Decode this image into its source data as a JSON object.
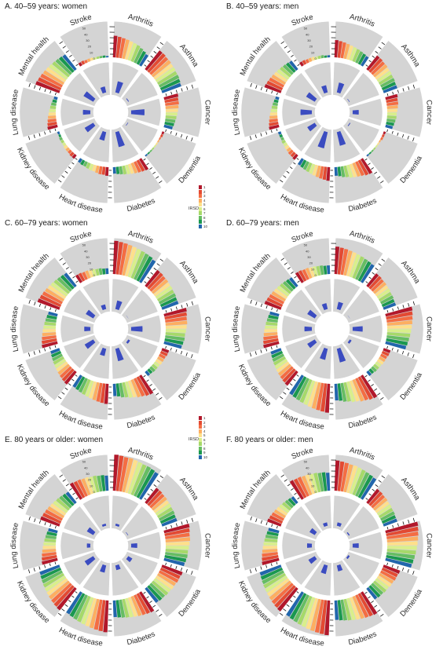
{
  "colors": {
    "panel_fill": "#d4d4d4",
    "bar_blue": "#3b4cc0",
    "irsd_scale": [
      "#b2182b",
      "#e34a33",
      "#f46d43",
      "#fdae61",
      "#fee08b",
      "#d9ef8b",
      "#a6d96a",
      "#66bd63",
      "#1a9850",
      "#2166ac"
    ]
  },
  "legend": {
    "title": "IRSD",
    "labels": [
      "1",
      "2",
      "3",
      "4",
      "5",
      "6",
      "7",
      "8",
      "9",
      "10"
    ]
  },
  "chart_data": [
    {
      "type": "radial-bar",
      "title": "A. 40–59 years: women",
      "categories": [
        "Arthritis",
        "Asthma",
        "Cancer",
        "Dementia",
        "Diabetes",
        "Heart disease",
        "Kidney disease",
        "Lung disease",
        "Mental health",
        "Stroke"
      ],
      "series": [
        {
          "name": "IRSD",
          "values": [
            [
              30,
              29,
              28,
              27,
              26,
              25,
              24,
              22,
              20,
              18
            ],
            [
              33,
              33,
              32,
              32,
              31,
              31,
              30,
              30,
              29,
              28
            ],
            [
              20,
              19,
              19,
              18,
              17,
              16,
              15,
              14,
              13,
              12
            ],
            [
              3,
              3,
              2,
              2,
              2,
              2,
              2,
              2,
              2,
              2
            ],
            [
              18,
              17,
              16,
              15,
              14,
              13,
              12,
              11,
              10,
              9
            ],
            [
              12,
              11,
              11,
              10,
              9,
              9,
              8,
              7,
              7,
              6
            ],
            [
              6,
              6,
              5,
              5,
              5,
              4,
              4,
              4,
              3,
              3
            ],
            [
              14,
              13,
              12,
              11,
              10,
              9,
              8,
              7,
              6,
              5
            ],
            [
              35,
              34,
              33,
              32,
              31,
              30,
              29,
              28,
              27,
              26
            ],
            [
              5,
              5,
              4,
              4,
              4,
              3,
              3,
              3,
              3,
              2
            ]
          ]
        },
        {
          "name": "inner",
          "values": [
            22,
            6,
            25,
            4,
            28,
            18,
            20,
            16,
            22,
            14
          ]
        }
      ],
      "scale_labels": [
        "50",
        "40",
        "30",
        "20",
        "10",
        "0"
      ]
    },
    {
      "type": "radial-bar",
      "title": "B. 40–59 years: men",
      "categories": [
        "Arthritis",
        "Asthma",
        "Cancer",
        "Dementia",
        "Diabetes",
        "Heart disease",
        "Kidney disease",
        "Lung disease",
        "Mental health",
        "Stroke"
      ],
      "series": [
        {
          "name": "IRSD",
          "values": [
            [
              24,
              23,
              22,
              21,
              20,
              19,
              18,
              17,
              16,
              15
            ],
            [
              24,
              24,
              23,
              23,
              22,
              22,
              21,
              21,
              20,
              20
            ],
            [
              17,
              16,
              16,
              15,
              14,
              13,
              13,
              12,
              11,
              10
            ],
            [
              3,
              3,
              3,
              2,
              2,
              2,
              2,
              2,
              2,
              2
            ],
            [
              24,
              23,
              21,
              20,
              19,
              18,
              16,
              15,
              13,
              12
            ],
            [
              19,
              18,
              17,
              16,
              15,
              14,
              13,
              12,
              11,
              10
            ],
            [
              8,
              7,
              7,
              6,
              6,
              5,
              5,
              4,
              4,
              4
            ],
            [
              14,
              13,
              12,
              11,
              10,
              9,
              8,
              7,
              6,
              5
            ],
            [
              24,
              23,
              22,
              21,
              20,
              19,
              18,
              17,
              16,
              15
            ],
            [
              6,
              6,
              5,
              5,
              5,
              4,
              4,
              4,
              3,
              3
            ]
          ]
        },
        {
          "name": "inner",
          "values": [
            20,
            4,
            14,
            6,
            26,
            30,
            18,
            22,
            20,
            16
          ]
        }
      ],
      "scale_labels": [
        "50",
        "40",
        "30",
        "20",
        "10",
        "0"
      ]
    },
    {
      "type": "radial-bar",
      "title": "C. 60–79 years: women",
      "categories": [
        "Arthritis",
        "Asthma",
        "Cancer",
        "Dementia",
        "Diabetes",
        "Heart disease",
        "Kidney disease",
        "Lung disease",
        "Mental health",
        "Stroke"
      ],
      "series": [
        {
          "name": "IRSD",
          "values": [
            [
              46,
              45,
              44,
              43,
              42,
              41,
              40,
              39,
              38,
              36
            ],
            [
              28,
              28,
              27,
              27,
              26,
              26,
              25,
              25,
              24,
              24
            ],
            [
              32,
              31,
              30,
              30,
              29,
              28,
              27,
              27,
              26,
              25
            ],
            [
              10,
              10,
              9,
              9,
              9,
              8,
              8,
              8,
              7,
              7
            ],
            [
              30,
              29,
              27,
              26,
              24,
              23,
              21,
              20,
              18,
              17
            ],
            [
              28,
              27,
              26,
              25,
              24,
              23,
              22,
              21,
              20,
              19
            ],
            [
              22,
              21,
              20,
              19,
              18,
              17,
              16,
              15,
              14,
              13
            ],
            [
              22,
              21,
              20,
              19,
              18,
              17,
              16,
              15,
              14,
              13
            ],
            [
              32,
              31,
              30,
              29,
              28,
              27,
              26,
              25,
              24,
              23
            ],
            [
              12,
              12,
              11,
              11,
              10,
              10,
              9,
              9,
              8,
              8
            ]
          ]
        },
        {
          "name": "inner",
          "values": [
            18,
            5,
            22,
            8,
            24,
            16,
            20,
            14,
            18,
            12
          ]
        }
      ],
      "scale_labels": [
        "50",
        "40",
        "30",
        "20",
        "10",
        "0"
      ]
    },
    {
      "type": "radial-bar",
      "title": "D. 60–79 years: men",
      "categories": [
        "Arthritis",
        "Asthma",
        "Cancer",
        "Dementia",
        "Diabetes",
        "Heart disease",
        "Kidney disease",
        "Lung disease",
        "Mental health",
        "Stroke"
      ],
      "series": [
        {
          "name": "IRSD",
          "values": [
            [
              38,
              37,
              36,
              35,
              34,
              33,
              32,
              31,
              30,
              29
            ],
            [
              22,
              22,
              21,
              21,
              20,
              20,
              19,
              19,
              18,
              18
            ],
            [
              38,
              37,
              36,
              35,
              34,
              33,
              32,
              31,
              30,
              29
            ],
            [
              10,
              10,
              9,
              9,
              9,
              8,
              8,
              8,
              7,
              7
            ],
            [
              36,
              35,
              33,
              32,
              30,
              29,
              27,
              26,
              24,
              23
            ],
            [
              40,
              39,
              38,
              37,
              36,
              35,
              34,
              33,
              32,
              31
            ],
            [
              24,
              23,
              22,
              21,
              20,
              19,
              18,
              17,
              16,
              15
            ],
            [
              22,
              21,
              20,
              19,
              18,
              17,
              16,
              15,
              14,
              13
            ],
            [
              24,
              23,
              22,
              21,
              20,
              19,
              18,
              17,
              16,
              15
            ],
            [
              16,
              16,
              15,
              15,
              14,
              14,
              13,
              13,
              12,
              12
            ]
          ]
        },
        {
          "name": "inner",
          "values": [
            16,
            5,
            20,
            8,
            26,
            22,
            18,
            16,
            18,
            14
          ]
        }
      ],
      "scale_labels": [
        "50",
        "40",
        "30",
        "20",
        "10",
        "0"
      ]
    },
    {
      "type": "radial-bar",
      "title": "E. 80 years or older: women",
      "categories": [
        "Arthritis",
        "Asthma",
        "Cancer",
        "Dementia",
        "Diabetes",
        "Heart disease",
        "Kidney disease",
        "Lung disease",
        "Mental health",
        "Stroke"
      ],
      "series": [
        {
          "name": "IRSD",
          "values": [
            [
              50,
              49,
              48,
              48,
              47,
              46,
              45,
              45,
              44,
              43
            ],
            [
              26,
              26,
              25,
              25,
              24,
              24,
              23,
              23,
              22,
              22
            ],
            [
              36,
              35,
              34,
              34,
              33,
              32,
              31,
              31,
              30,
              29
            ],
            [
              30,
              29,
              29,
              28,
              28,
              27,
              27,
              26,
              26,
              25
            ],
            [
              32,
              31,
              30,
              29,
              28,
              27,
              26,
              25,
              24,
              23
            ],
            [
              44,
              43,
              42,
              41,
              40,
              39,
              38,
              37,
              36,
              35
            ],
            [
              38,
              37,
              36,
              35,
              34,
              33,
              32,
              31,
              30,
              29
            ],
            [
              22,
              21,
              20,
              19,
              18,
              17,
              16,
              15,
              14,
              13
            ],
            [
              28,
              27,
              26,
              25,
              24,
              23,
              22,
              21,
              20,
              19
            ],
            [
              26,
              25,
              25,
              24,
              24,
              23,
              23,
              22,
              22,
              21
            ]
          ]
        },
        {
          "name": "inner",
          "values": [
            8,
            4,
            14,
            12,
            12,
            16,
            20,
            10,
            16,
            8
          ]
        }
      ],
      "scale_labels": [
        "50",
        "40",
        "30",
        "20",
        "10",
        "0"
      ]
    },
    {
      "type": "radial-bar",
      "title": "F. 80 years or older: men",
      "categories": [
        "Arthritis",
        "Asthma",
        "Cancer",
        "Dementia",
        "Diabetes",
        "Heart disease",
        "Kidney disease",
        "Lung disease",
        "Mental health",
        "Stroke"
      ],
      "series": [
        {
          "name": "IRSD",
          "values": [
            [
              42,
              41,
              40,
              39,
              39,
              38,
              37,
              36,
              35,
              34
            ],
            [
              24,
              24,
              23,
              23,
              22,
              22,
              21,
              21,
              20,
              20
            ],
            [
              46,
              45,
              44,
              43,
              42,
              41,
              40,
              39,
              38,
              37
            ],
            [
              24,
              23,
              23,
              22,
              22,
              21,
              21,
              20,
              20,
              19
            ],
            [
              36,
              35,
              34,
              33,
              32,
              31,
              30,
              29,
              28,
              27
            ],
            [
              48,
              47,
              46,
              45,
              44,
              43,
              42,
              41,
              40,
              39
            ],
            [
              40,
              39,
              38,
              37,
              36,
              35,
              34,
              33,
              32,
              31
            ],
            [
              24,
              23,
              22,
              21,
              20,
              19,
              18,
              17,
              16,
              15
            ],
            [
              20,
              19,
              18,
              17,
              16,
              15,
              14,
              13,
              12,
              11
            ],
            [
              30,
              29,
              29,
              28,
              28,
              27,
              27,
              26,
              26,
              25
            ]
          ]
        },
        {
          "name": "inner",
          "values": [
            10,
            3,
            14,
            2,
            14,
            18,
            16,
            12,
            14,
            10
          ]
        }
      ],
      "scale_labels": [
        "50",
        "40",
        "30",
        "20",
        "10",
        "0"
      ]
    }
  ]
}
